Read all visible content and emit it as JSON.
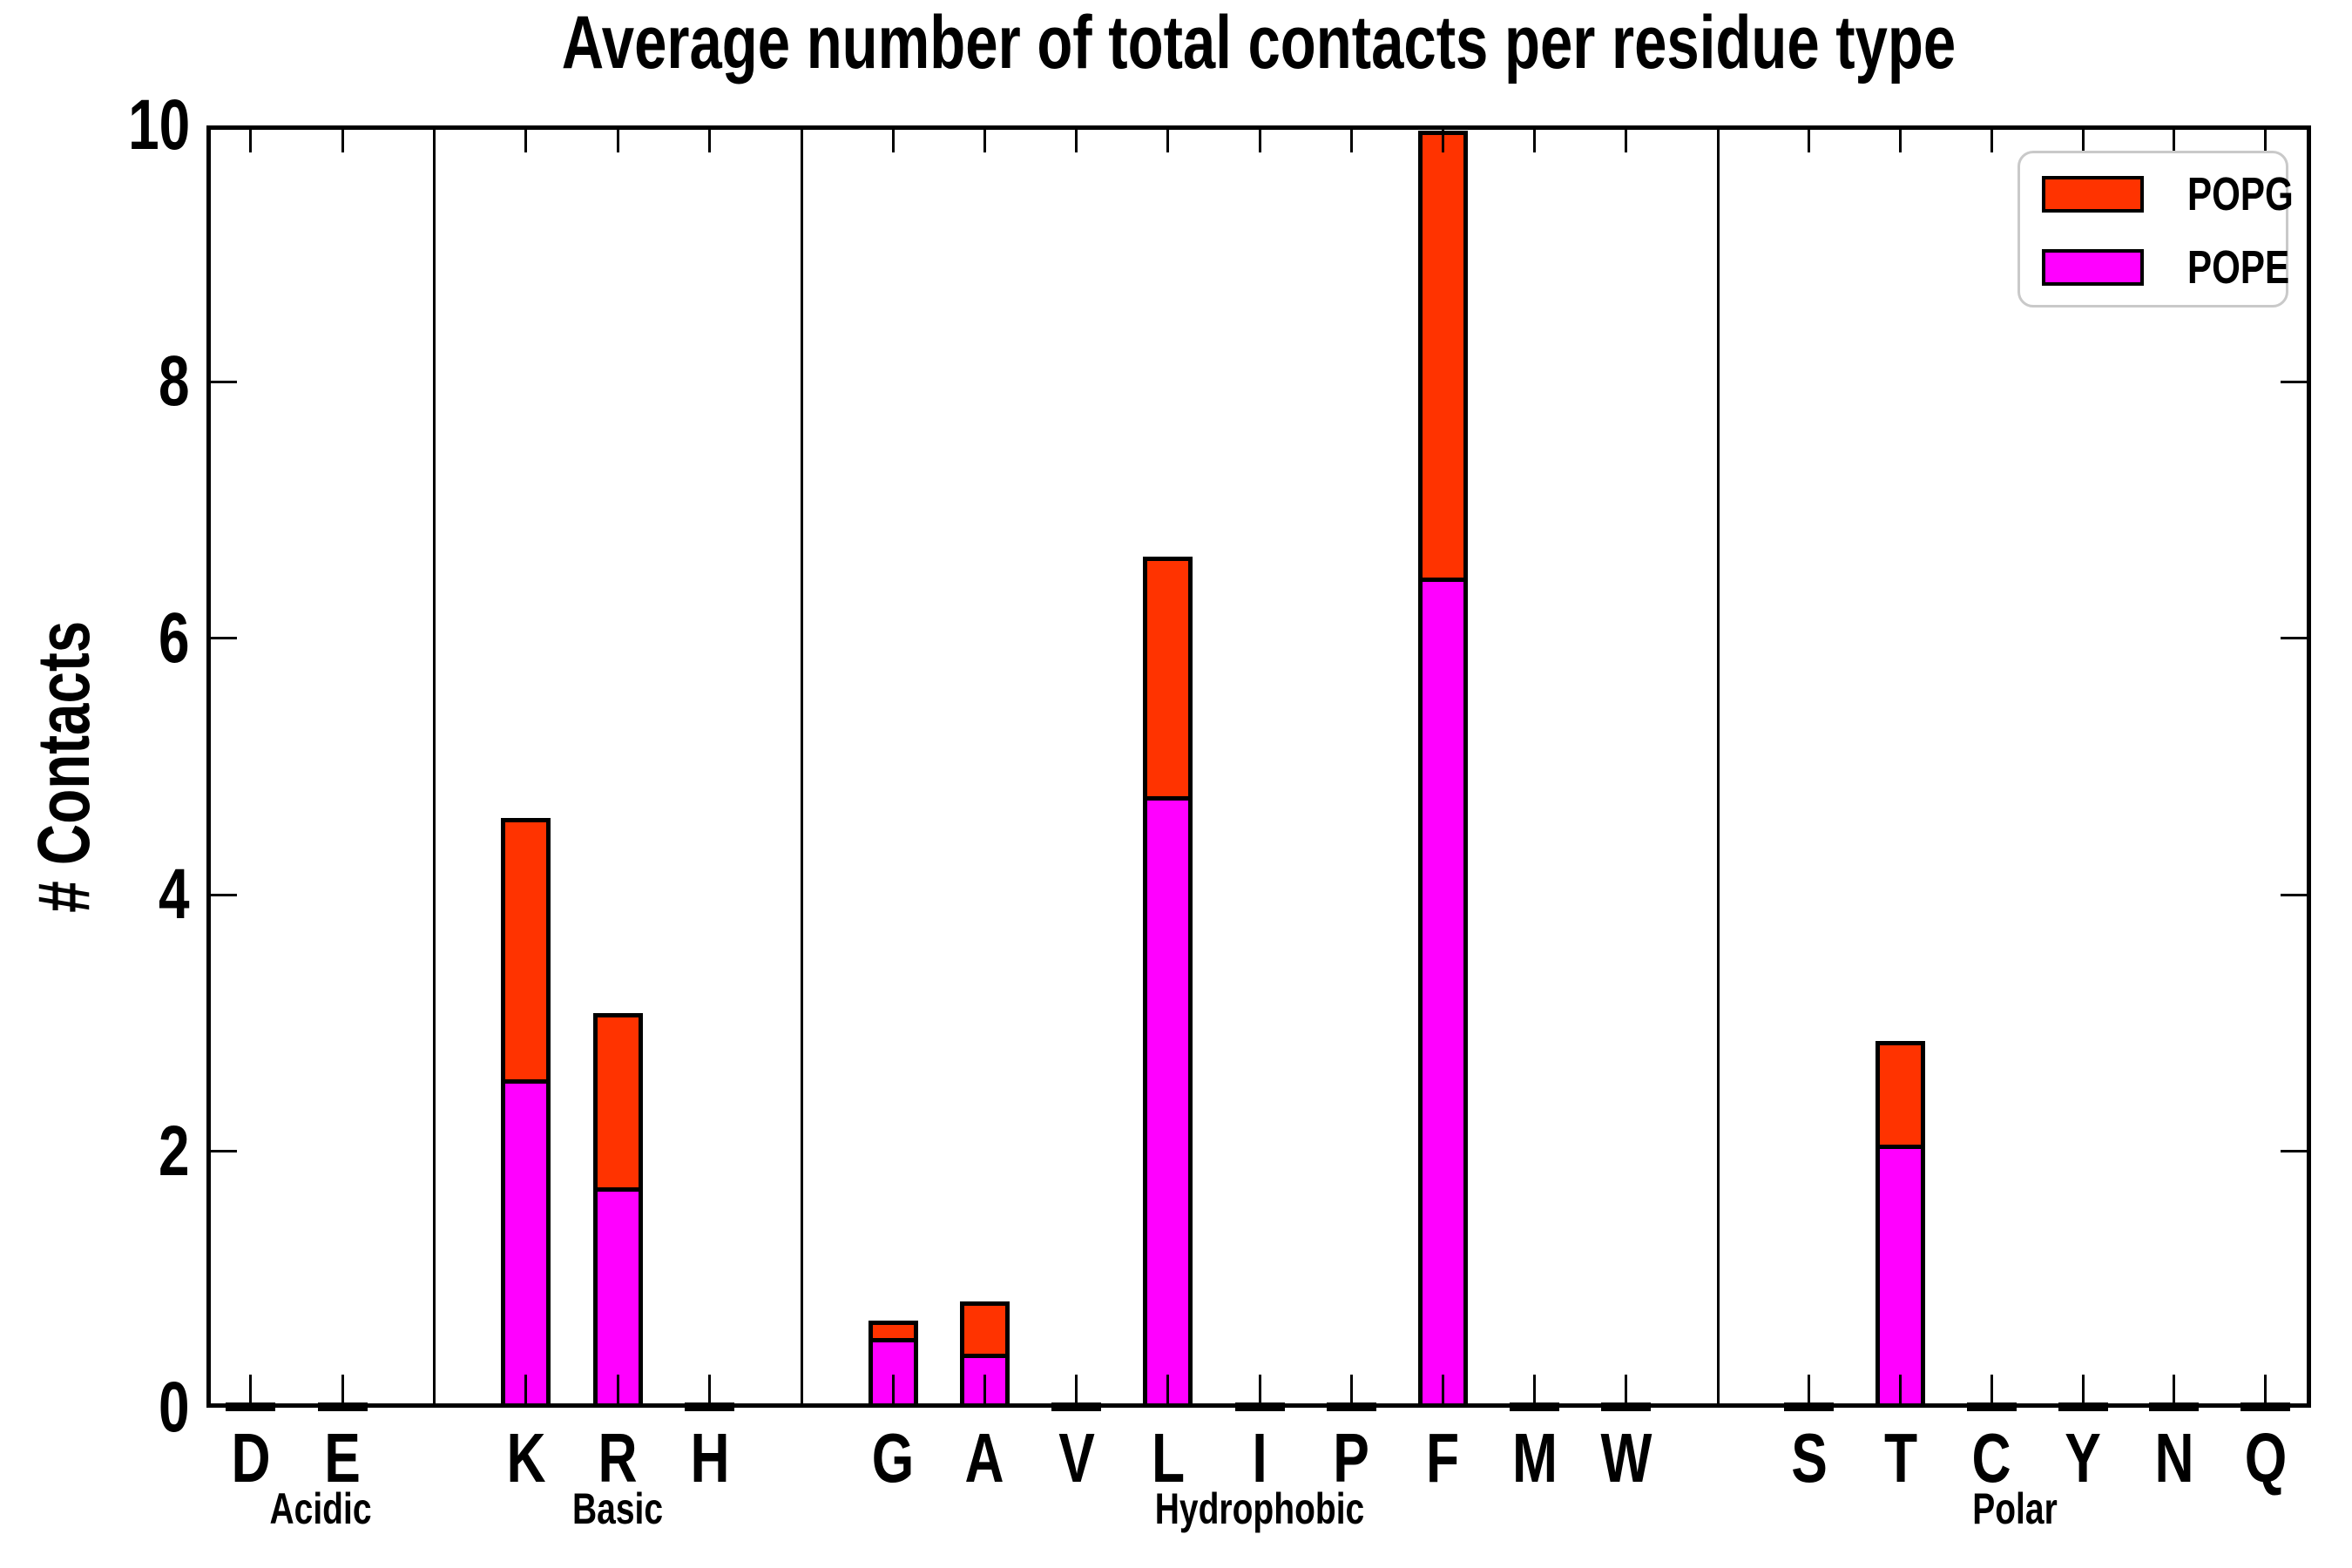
{
  "title": "Average number of total contacts per residue type",
  "ylabel": "# Contacts",
  "legend": {
    "items": [
      {
        "name": "POPG",
        "color": "#ff3300"
      },
      {
        "name": "POPE",
        "color": "#ff00ff"
      }
    ]
  },
  "colors": {
    "popg": "#ff3300",
    "pope": "#ff00ff",
    "axis": "#000000",
    "legend_border": "#c9c9c9",
    "background": "#ffffff"
  },
  "chart_data": {
    "type": "bar",
    "stacked": true,
    "title": "Average number of total contacts per residue type",
    "xlabel": "",
    "ylabel": "# Contacts",
    "ylim": [
      0,
      10
    ],
    "yticks": [
      0,
      2,
      4,
      6,
      8,
      10
    ],
    "grid": false,
    "legend_position": "upper right",
    "series_order_bottom_to_top": [
      "POPE",
      "POPG"
    ],
    "groups": [
      {
        "label": "Acidic",
        "categories": [
          "D",
          "E"
        ],
        "series": [
          {
            "name": "POPE",
            "values": [
              0.02,
              0.02
            ]
          },
          {
            "name": "POPG",
            "values": [
              0.01,
              0.01
            ]
          }
        ]
      },
      {
        "label": "Basic",
        "categories": [
          "K",
          "R",
          "H"
        ],
        "series": [
          {
            "name": "POPE",
            "values": [
              2.53,
              1.69,
              0.02
            ]
          },
          {
            "name": "POPG",
            "values": [
              2.07,
              1.39,
              0.01
            ]
          }
        ]
      },
      {
        "label": "Hydrophobic",
        "categories": [
          "G",
          "A",
          "V",
          "L",
          "I",
          "P",
          "F",
          "M",
          "W"
        ],
        "series": [
          {
            "name": "POPE",
            "values": [
              0.51,
              0.39,
              0.02,
              4.74,
              0.02,
              0.02,
              6.44,
              0.02,
              0.02
            ]
          },
          {
            "name": "POPG",
            "values": [
              0.17,
              0.44,
              0.01,
              1.9,
              0.01,
              0.01,
              3.52,
              0.01,
              0.01
            ]
          }
        ]
      },
      {
        "label": "Polar",
        "categories": [
          "S",
          "T",
          "C",
          "Y",
          "N",
          "Q"
        ],
        "series": [
          {
            "name": "POPE",
            "values": [
              0.02,
              2.02,
              0.02,
              0.02,
              0.02,
              0.02
            ]
          },
          {
            "name": "POPG",
            "values": [
              0.01,
              0.84,
              0.01,
              0.01,
              0.01,
              0.01
            ]
          }
        ]
      }
    ]
  }
}
